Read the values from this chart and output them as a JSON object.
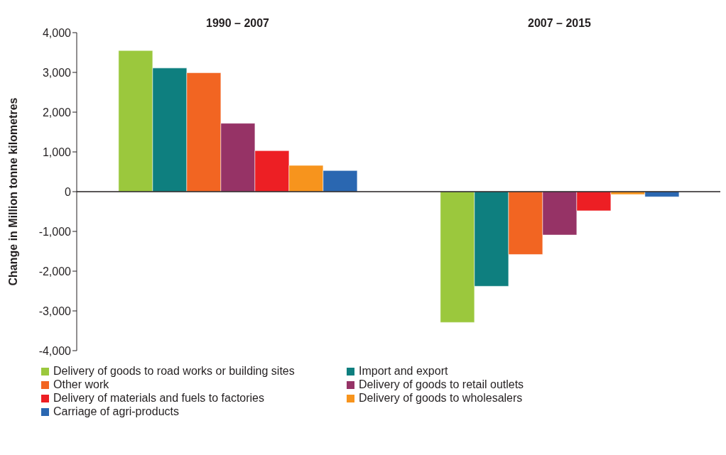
{
  "chart_data": {
    "type": "bar",
    "categories": [
      "1990 – 2007",
      "2007 – 2015"
    ],
    "ylabel": "Change in Million tonne kilometres",
    "ylim": [
      -4000,
      4000
    ],
    "yticks": [
      {
        "value": -4000,
        "label": "-4,000"
      },
      {
        "value": -3000,
        "label": "-3,000"
      },
      {
        "value": -2000,
        "label": "-2,000"
      },
      {
        "value": -1000,
        "label": "-1,000"
      },
      0,
      {
        "value": 1000,
        "label": "1,000"
      },
      {
        "value": 2000,
        "label": "2,000"
      },
      {
        "value": 3000,
        "label": "3,000"
      },
      {
        "value": 4000,
        "label": "4,000"
      }
    ],
    "legend": "bottom",
    "series": [
      {
        "name": "Delivery of goods to road works or building sites",
        "color": "#9bc83d",
        "values": [
          3550,
          -3290
        ]
      },
      {
        "name": "Import and export",
        "color": "#0e7f7f",
        "values": [
          3110,
          -2380
        ]
      },
      {
        "name": "Other work",
        "color": "#f26522",
        "values": [
          2990,
          -1580
        ]
      },
      {
        "name": "Delivery of goods to retail outlets",
        "color": "#963366",
        "values": [
          1720,
          -1090
        ]
      },
      {
        "name": "Delivery of materials and fuels to factories",
        "color": "#ed1f24",
        "values": [
          1030,
          -480
        ]
      },
      {
        "name": "Delivery of goods to wholesalers",
        "color": "#f7941d",
        "values": [
          660,
          -70
        ]
      },
      {
        "name": "Carriage of agri-products",
        "color": "#2a67b1",
        "values": [
          530,
          -130
        ]
      }
    ]
  }
}
